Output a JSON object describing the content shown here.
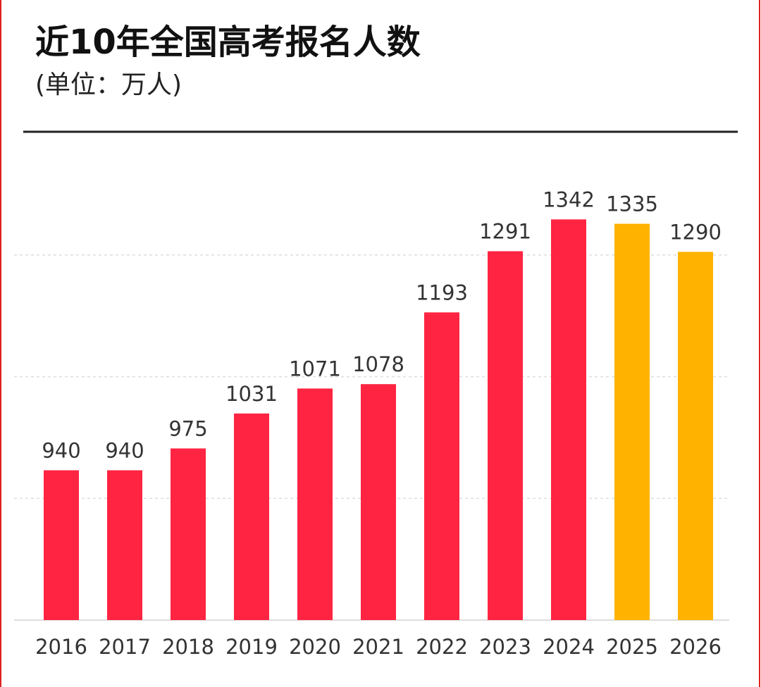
{
  "chart_data": {
    "type": "bar",
    "title": "近10年全国高考报名人数",
    "subtitle": "(单位：万人)",
    "categories": [
      "2016",
      "2017",
      "2018",
      "2019",
      "2020",
      "2021",
      "2022",
      "2023",
      "2024",
      "2025",
      "2026"
    ],
    "values": [
      940,
      940,
      975,
      1031,
      1071,
      1078,
      1193,
      1291,
      1342,
      1335,
      1290
    ],
    "colors": [
      "#ff2442",
      "#ff2442",
      "#ff2442",
      "#ff2442",
      "#ff2442",
      "#ff2442",
      "#ff2442",
      "#ff2442",
      "#ff2442",
      "#ffb300",
      "#ffb300"
    ],
    "ylim": [
      700,
      1400
    ],
    "yticks": [
      895,
      1090,
      1285
    ],
    "grid": true
  }
}
